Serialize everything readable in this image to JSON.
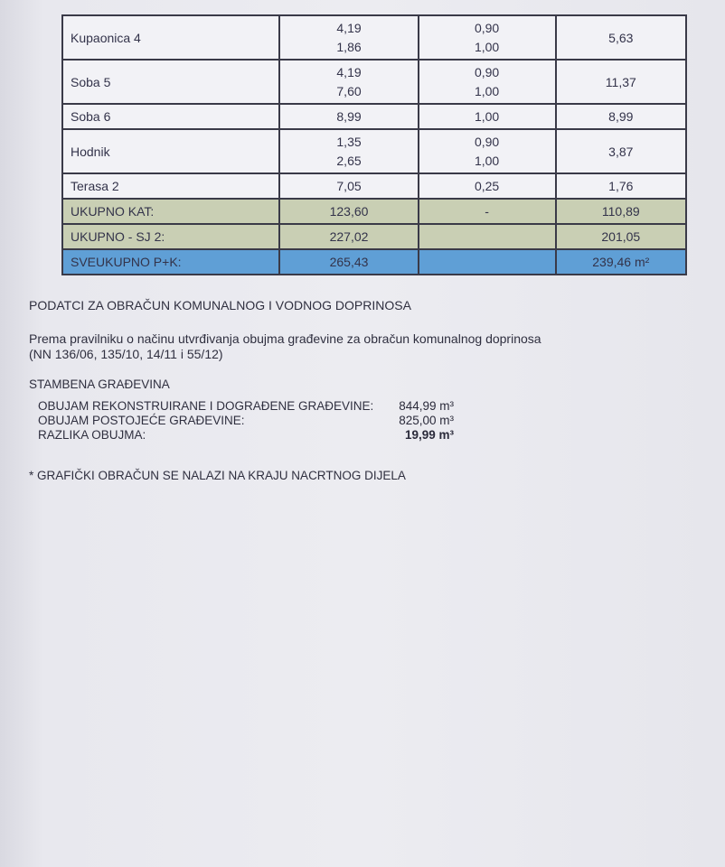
{
  "table": {
    "rows": [
      {
        "label": "Kupaonica 4",
        "a": [
          "4,19",
          "1,86"
        ],
        "b": [
          "0,90",
          "1,00"
        ],
        "total": "5,63",
        "style": "white"
      },
      {
        "label": "Soba 5",
        "a": [
          "4,19",
          "7,60"
        ],
        "b": [
          "0,90",
          "1,00"
        ],
        "total": "11,37",
        "style": "white"
      },
      {
        "label": "Soba 6",
        "a": [
          "8,99"
        ],
        "b": [
          "1,00"
        ],
        "total": "8,99",
        "style": "white"
      },
      {
        "label": "Hodnik",
        "a": [
          "1,35",
          "2,65"
        ],
        "b": [
          "0,90",
          "1,00"
        ],
        "total": "3,87",
        "style": "white"
      },
      {
        "label": "Terasa 2",
        "a": [
          "7,05"
        ],
        "b": [
          "0,25"
        ],
        "total": "1,76",
        "style": "white"
      },
      {
        "label": "UKUPNO KAT:",
        "a": [
          "123,60"
        ],
        "b": [
          "-"
        ],
        "total": "110,89",
        "style": "green"
      },
      {
        "label": "UKUPNO - SJ 2:",
        "a": [
          "227,02"
        ],
        "b": [
          ""
        ],
        "total": "201,05",
        "style": "green"
      },
      {
        "label": "SVEUKUPNO P+K:",
        "a": [
          "265,43"
        ],
        "b": [
          ""
        ],
        "total": "239,46 m²",
        "style": "blue"
      }
    ],
    "colors": {
      "white": "#f2f2f6",
      "green": "#c9cfb4",
      "blue": "#5f9fd6"
    }
  },
  "section_title": "PODATCI ZA OBRAČUN KOMUNALNOG I VODNOG DOPRINOSA",
  "intro_line1": "Prema pravilniku o načinu utvrđivanja obujma građevine za obračun komunalnog doprinosa",
  "intro_line2": "(NN 136/06, 135/10, 14/11 i 55/12)",
  "subsection": "STAMBENA GRAĐEVINA",
  "volumes": [
    {
      "label": "OBUJAM REKONSTRUIRANE I DOGRAĐENE GRAĐEVINE:",
      "value": "844,99 m³"
    },
    {
      "label": "OBUJAM POSTOJEĆE GRAĐEVINE:",
      "value": "825,00 m³"
    },
    {
      "label": "RAZLIKA OBUJMA:",
      "value": "19,99 m³"
    }
  ],
  "note": "* GRAFIČKI OBRAČUN SE NALAZI NA KRAJU NACRTNOG DIJELA"
}
